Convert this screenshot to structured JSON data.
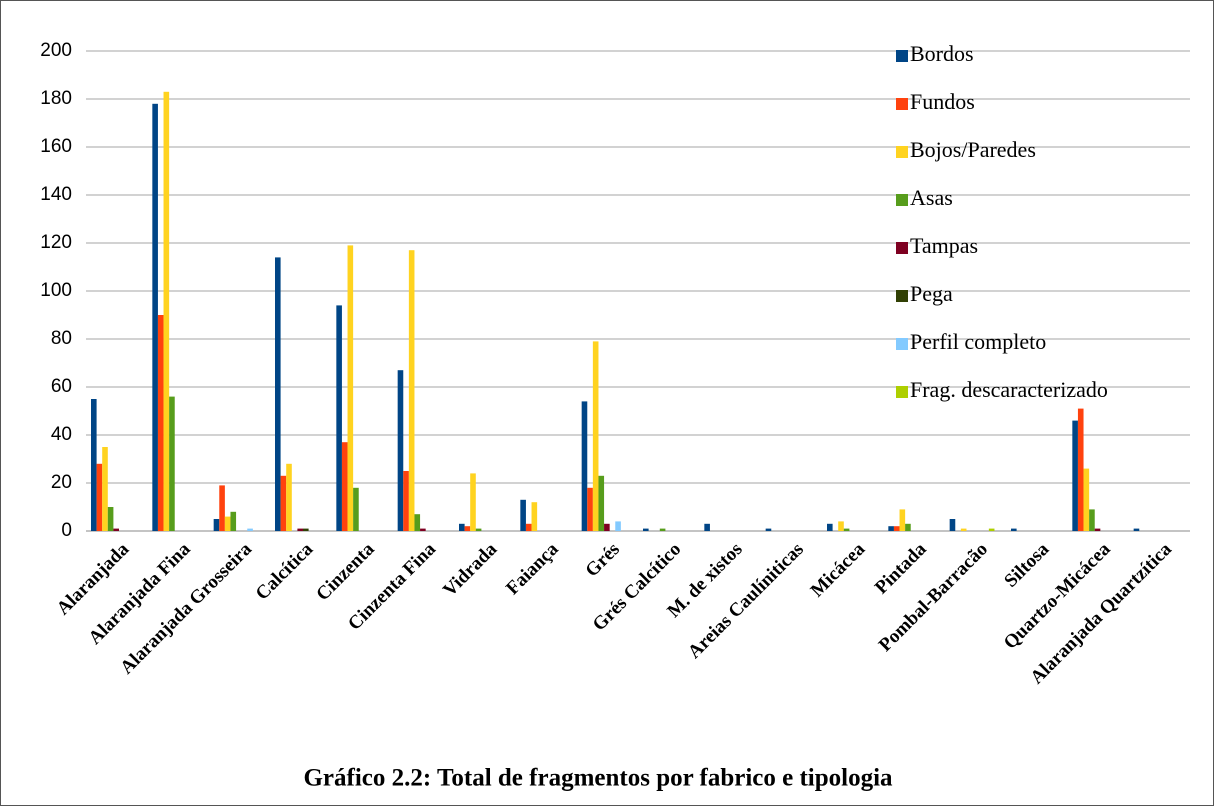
{
  "chart_data": {
    "type": "bar",
    "title": "Gráfico 2.2: Total de fragmentos por fabrico e tipologia",
    "categories": [
      "Alaranjada",
      "Alaranjada Fina",
      "Alaranjada Grosseira",
      "Calcítica",
      "Cinzenta",
      "Cinzenta Fina",
      "Vidrada",
      "Faiança",
      "Grés",
      "Grés Calcítico",
      "M. de xistos",
      "Areias Caulíniticas",
      "Micácea",
      "Pintada",
      "Pombal-Barracão",
      "Siltosa",
      "Quartzo-Micácea",
      "Alaranjada Quartzítica"
    ],
    "series": [
      {
        "name": "Bordos",
        "color": "#004586",
        "values": [
          55,
          178,
          5,
          114,
          94,
          67,
          3,
          13,
          54,
          1,
          3,
          1,
          3,
          2,
          5,
          1,
          46,
          1
        ]
      },
      {
        "name": "Fundos",
        "color": "#ff420e",
        "values": [
          28,
          90,
          19,
          23,
          37,
          25,
          2,
          3,
          18,
          0,
          0,
          0,
          0,
          2,
          0,
          0,
          51,
          0
        ]
      },
      {
        "name": "Bojos/Paredes",
        "color": "#ffd320",
        "values": [
          35,
          183,
          6,
          28,
          119,
          117,
          24,
          12,
          79,
          0,
          0,
          0,
          4,
          9,
          1,
          0,
          26,
          0
        ]
      },
      {
        "name": "Asas",
        "color": "#579d1c",
        "values": [
          10,
          56,
          8,
          0,
          18,
          7,
          1,
          0,
          23,
          1,
          0,
          0,
          1,
          3,
          0,
          0,
          9,
          0
        ]
      },
      {
        "name": "Tampas",
        "color": "#7e0021",
        "values": [
          1,
          0,
          0,
          1,
          0,
          1,
          0,
          0,
          3,
          0,
          0,
          0,
          0,
          0,
          0,
          0,
          1,
          0
        ]
      },
      {
        "name": "Pega",
        "color": "#314004",
        "values": [
          0,
          0,
          0,
          1,
          0,
          0,
          0,
          0,
          0,
          0,
          0,
          0,
          0,
          0,
          0,
          0,
          0,
          0
        ]
      },
      {
        "name": "Perfil completo",
        "color": "#83caff",
        "values": [
          0,
          0,
          1,
          0,
          0,
          0,
          0,
          0,
          4,
          0,
          0,
          0,
          0,
          0,
          0,
          0,
          0,
          0
        ]
      },
      {
        "name": "Frag. descaracterizado",
        "color": "#aecf00",
        "values": [
          0,
          0,
          0,
          0,
          0,
          0,
          0,
          0,
          0,
          0,
          0,
          0,
          0,
          0,
          1,
          0,
          0,
          0
        ]
      }
    ],
    "ylim": [
      0,
      200
    ],
    "yticks": [
      0,
      20,
      40,
      60,
      80,
      100,
      120,
      140,
      160,
      180,
      200
    ],
    "grid": true,
    "legend": "right"
  }
}
